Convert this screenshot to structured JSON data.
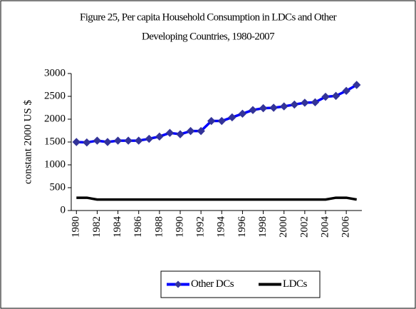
{
  "chart_data": {
    "type": "line",
    "title": [
      "Figure 25, Per capita Household Consumption in LDCs and Other",
      "Developing Countries, 1980-2007"
    ],
    "y_label": "constant 2000 US $",
    "x": [
      1980,
      1981,
      1982,
      1983,
      1984,
      1985,
      1986,
      1987,
      1988,
      1989,
      1990,
      1991,
      1992,
      1993,
      1994,
      1995,
      1996,
      1997,
      1998,
      1999,
      2000,
      2001,
      2002,
      2003,
      2004,
      2005,
      2006,
      2007
    ],
    "xlim": [
      1979.5,
      2007.5
    ],
    "xticks": [
      1980,
      1982,
      1984,
      1986,
      1988,
      1990,
      1992,
      1994,
      1996,
      1998,
      2000,
      2002,
      2004,
      2006
    ],
    "ylim": [
      0,
      3000
    ],
    "yticks": [
      0,
      500,
      1000,
      1500,
      2000,
      2500,
      3000
    ],
    "grid": false,
    "legend": "bottom",
    "series": [
      {
        "name": "Other DCs",
        "color": "#0000ff",
        "marker_color": "#333399",
        "marker": "diamond",
        "values": [
          1500,
          1490,
          1530,
          1500,
          1530,
          1530,
          1530,
          1570,
          1620,
          1700,
          1670,
          1740,
          1740,
          1960,
          1960,
          2040,
          2120,
          2200,
          2240,
          2250,
          2280,
          2320,
          2360,
          2370,
          2490,
          2510,
          2620,
          2750
        ]
      },
      {
        "name": "LDCs",
        "color": "#000000",
        "values": [
          280,
          280,
          240,
          240,
          240,
          240,
          240,
          240,
          240,
          240,
          240,
          240,
          240,
          240,
          240,
          240,
          240,
          240,
          240,
          240,
          240,
          240,
          240,
          240,
          240,
          280,
          280,
          240
        ]
      }
    ]
  }
}
